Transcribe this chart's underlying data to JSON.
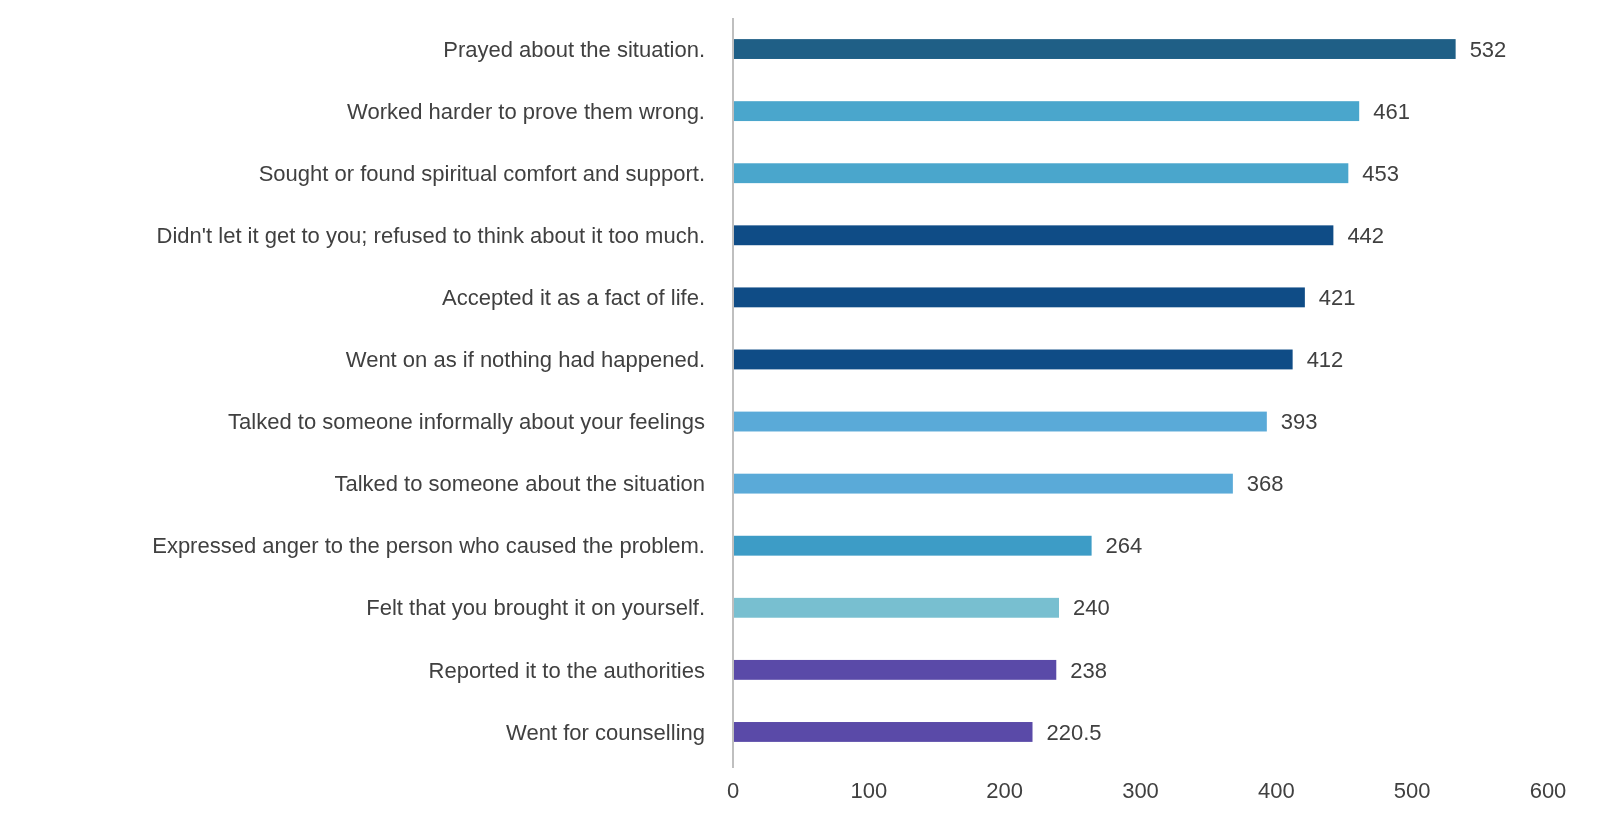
{
  "chart_data": {
    "type": "bar",
    "orientation": "horizontal",
    "categories": [
      "Prayed about the situation.",
      "Worked harder to prove them wrong.",
      "Sought or found spiritual comfort and support.",
      "Didn't let it get to you; refused to think about it too much.",
      "Accepted it as a fact of life.",
      "Went on as if nothing had happened.",
      "Talked to someone informally about your feelings",
      "Talked to someone about the situation",
      "Expressed anger to the person who caused the problem.",
      "Felt that you brought it on yourself.",
      "Reported it to the authorities",
      "Went for counselling"
    ],
    "values": [
      532,
      461,
      453,
      442,
      421,
      412,
      393,
      368,
      264,
      240,
      238,
      220.5
    ],
    "colors": [
      "#1f5f86",
      "#4aa6cc",
      "#4aa6cc",
      "#0f4c86",
      "#0f4c86",
      "#0f4c86",
      "#5aaad8",
      "#5aaad8",
      "#3d9cc6",
      "#78bfd0",
      "#5a4aa8",
      "#5a4aa8"
    ],
    "xlim": [
      0,
      600
    ],
    "xticks": [
      0,
      100,
      200,
      300,
      400,
      500,
      600
    ],
    "data_labels": true,
    "grid": false
  }
}
